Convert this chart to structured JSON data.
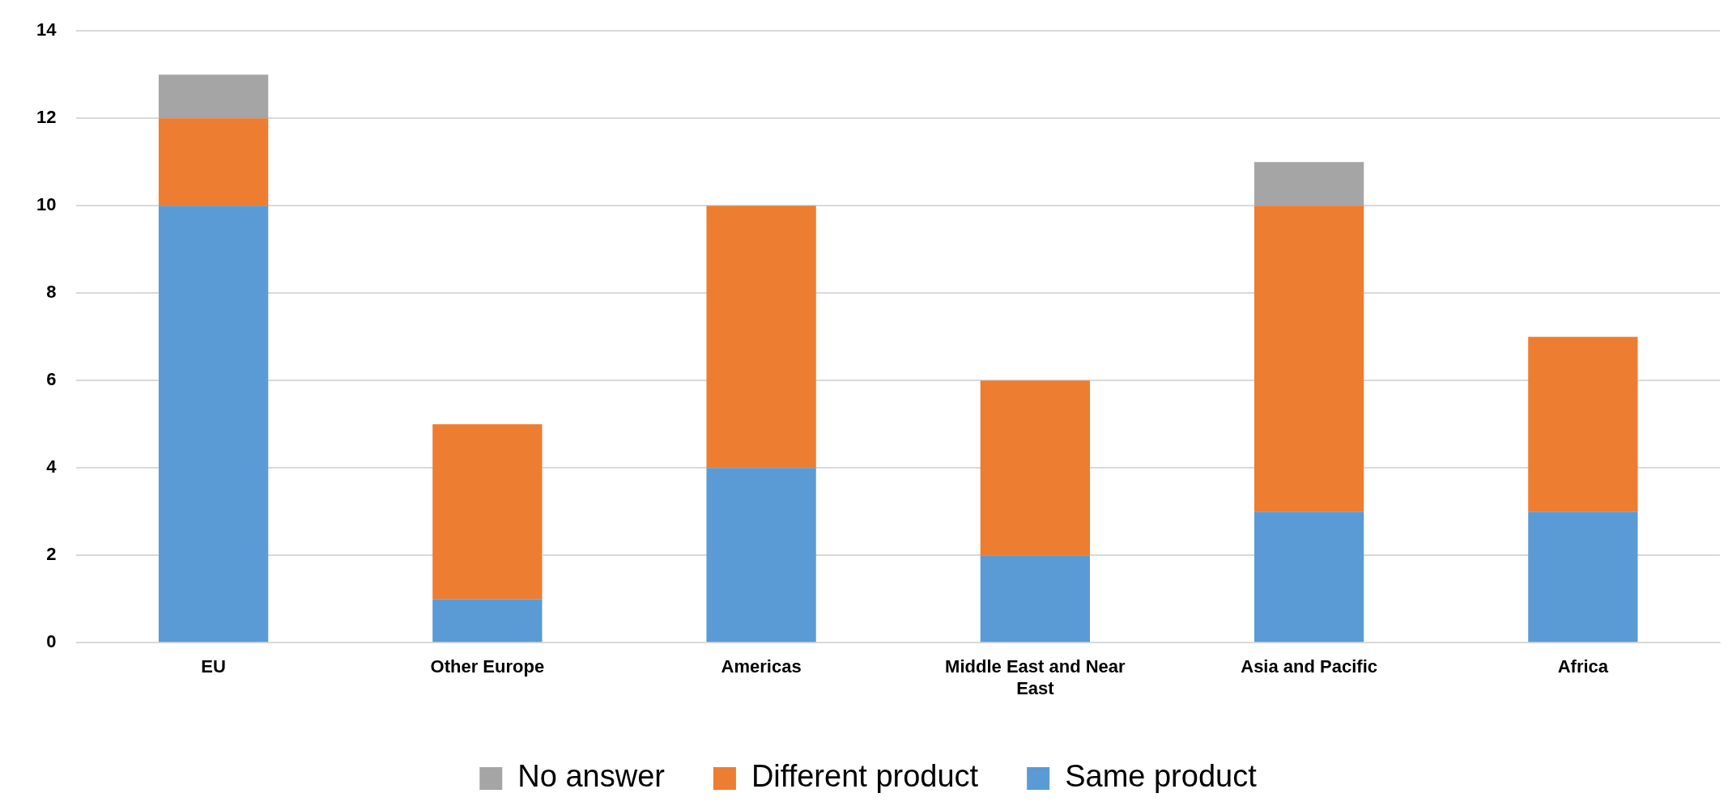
{
  "chart_data": {
    "type": "bar",
    "stacked": true,
    "categories": [
      "EU",
      "Other Europe",
      "Americas",
      "Middle East and Near East",
      "Asia and Pacific",
      "Africa"
    ],
    "series": [
      {
        "name": "Same product",
        "color": "#5b9bd5",
        "values": [
          10,
          1,
          4,
          2,
          3,
          3
        ]
      },
      {
        "name": "Different product",
        "color": "#ed7d31",
        "values": [
          2,
          4,
          6,
          4,
          7,
          4
        ]
      },
      {
        "name": "No answer",
        "color": "#a5a5a5",
        "values": [
          1,
          0,
          0,
          0,
          1,
          0
        ]
      }
    ],
    "ylim": [
      0,
      14
    ],
    "yticks": [
      0,
      2,
      4,
      6,
      8,
      10,
      12,
      14
    ],
    "grid": "y",
    "legend": "bottom"
  }
}
